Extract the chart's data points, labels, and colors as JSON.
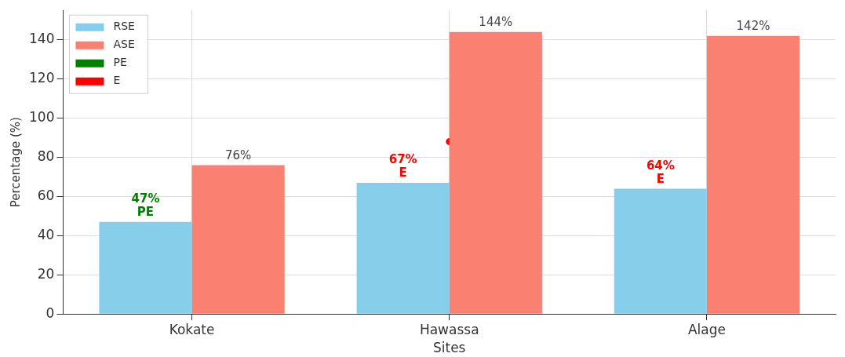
{
  "chart_data": {
    "type": "bar",
    "xlabel": "Sites",
    "ylabel": "Percentage (%)",
    "categories": [
      "Kokate",
      "Hawassa",
      "Alage"
    ],
    "series": [
      {
        "name": "RSE",
        "color": "#87ceeb",
        "values": [
          47,
          67,
          64
        ],
        "value_labels": [
          "47%\nPE",
          "67%\nE",
          "64%\nE"
        ]
      },
      {
        "name": "ASE",
        "color": "#fa8072",
        "values": [
          76,
          144,
          142
        ],
        "value_labels": [
          "76%",
          "144%",
          "142%"
        ]
      },
      {
        "name": "PE",
        "type": "scatter",
        "color": "#008000",
        "values": [
          null,
          null,
          null
        ]
      },
      {
        "name": "E",
        "type": "scatter",
        "color": "#ff0000",
        "values": [
          null,
          88,
          null
        ]
      }
    ],
    "ylim": [
      0,
      155
    ],
    "yticks": [
      0,
      20,
      40,
      60,
      80,
      100,
      120,
      140
    ],
    "grid": true,
    "legend": "top left",
    "marker": "circle"
  }
}
